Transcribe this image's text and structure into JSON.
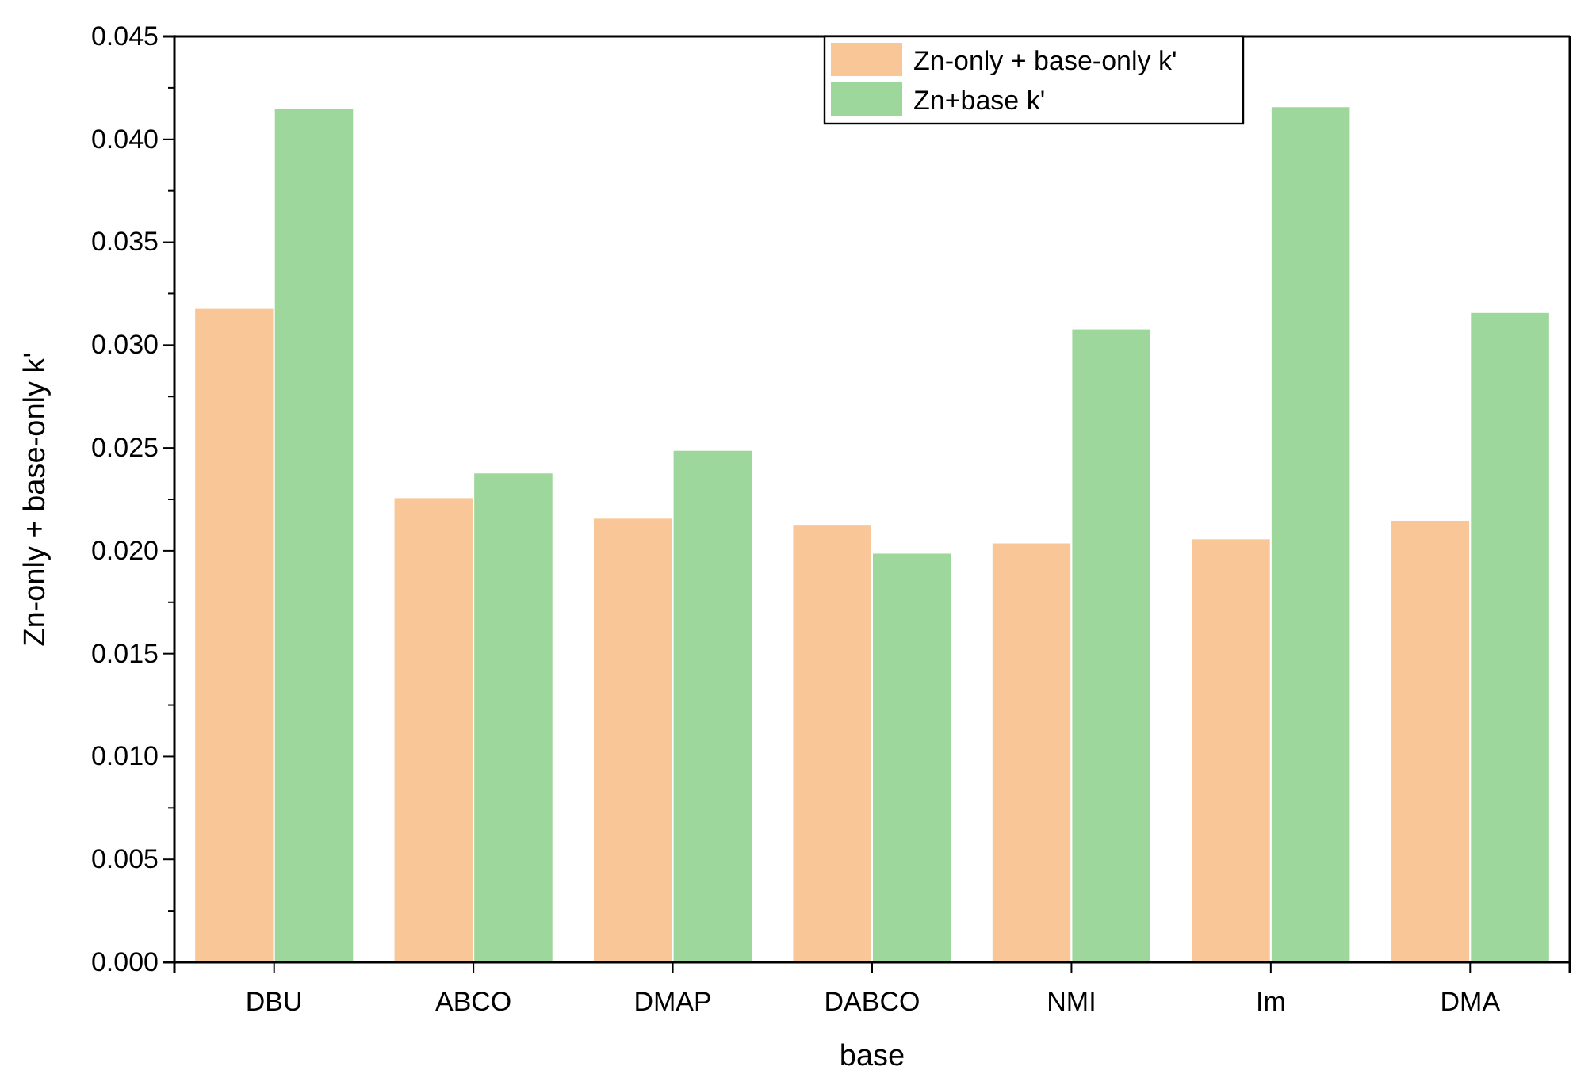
{
  "chart_data": {
    "type": "bar",
    "xlabel": "base",
    "ylabel": "Zn-only + base-only k'",
    "categories": [
      "DBU",
      "ABCO",
      "DMAP",
      "DABCO",
      "NMI",
      "Im",
      "DMA"
    ],
    "series": [
      {
        "name": "Zn-only + base-only k'",
        "color": "#f9c797",
        "values": [
          0.0318,
          0.0226,
          0.0216,
          0.0213,
          0.0204,
          0.0206,
          0.0215
        ]
      },
      {
        "name": "Zn+base k'",
        "color": "#9ed79c",
        "values": [
          0.0415,
          0.0238,
          0.0249,
          0.0199,
          0.0308,
          0.0416,
          0.0316
        ]
      }
    ],
    "ylim": [
      0,
      0.045
    ],
    "yticks": [
      {
        "value": 0,
        "label": "0.000"
      },
      {
        "value": 0.005,
        "label": "0.005"
      },
      {
        "value": 0.01,
        "label": "0.010"
      },
      {
        "value": 0.015,
        "label": "0.015"
      },
      {
        "value": 0.02,
        "label": "0.020"
      },
      {
        "value": 0.025,
        "label": "0.025"
      },
      {
        "value": 0.03,
        "label": "0.030"
      },
      {
        "value": 0.035,
        "label": "0.035"
      },
      {
        "value": 0.04,
        "label": "0.040"
      },
      {
        "value": 0.045,
        "label": "0.045"
      }
    ],
    "legend": "top",
    "grid": false
  }
}
